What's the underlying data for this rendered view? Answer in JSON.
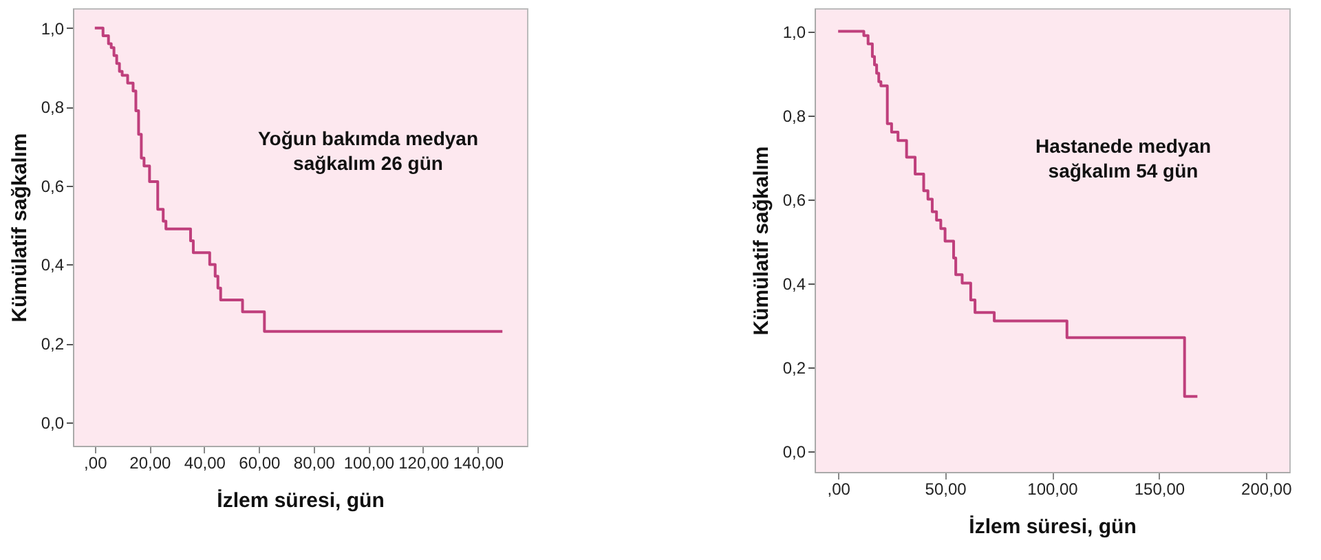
{
  "chart_data": [
    {
      "type": "step",
      "xlabel": "İzlem süresi, gün",
      "ylabel": "Kümülatif sağkalım",
      "annotations": [
        "Yoğun bakımda medyan\nsağkalım 26 gün"
      ],
      "series": [
        {
          "color": "#bf3f7c",
          "x": [
            0,
            3,
            5,
            6,
            7,
            8,
            9,
            10,
            12,
            14,
            15,
            16,
            17,
            18,
            20,
            23,
            25,
            26,
            35,
            36,
            42,
            44,
            45,
            46,
            54,
            62,
            149
          ],
          "values": [
            1.0,
            0.98,
            0.96,
            0.95,
            0.93,
            0.91,
            0.89,
            0.88,
            0.86,
            0.84,
            0.79,
            0.73,
            0.67,
            0.65,
            0.61,
            0.54,
            0.51,
            0.49,
            0.46,
            0.43,
            0.4,
            0.37,
            0.34,
            0.31,
            0.28,
            0.23,
            0.23
          ]
        }
      ],
      "xlim": [
        -8,
        158
      ],
      "ylim": [
        -0.06,
        1.05
      ],
      "xticks": [
        {
          "value": 0,
          "label": ",00"
        },
        {
          "value": 20,
          "label": "20,00"
        },
        {
          "value": 40,
          "label": "40,00"
        },
        {
          "value": 60,
          "label": "60,00"
        },
        {
          "value": 80,
          "label": "80,00"
        },
        {
          "value": 100,
          "label": "100,00"
        },
        {
          "value": 120,
          "label": "120,00"
        },
        {
          "value": 140,
          "label": "140,00"
        }
      ],
      "yticks": [
        {
          "value": 0,
          "label": "0,0"
        },
        {
          "value": 0.2,
          "label": "0,2"
        },
        {
          "value": 0.4,
          "label": "0,4"
        },
        {
          "value": 0.6,
          "label": "0,6"
        },
        {
          "value": 0.8,
          "label": "0,8"
        },
        {
          "value": 1.0,
          "label": "1,0"
        }
      ],
      "grid": false,
      "line_style": "solid",
      "marker": "none"
    },
    {
      "type": "step",
      "xlabel": "İzlem süresi, gün",
      "ylabel": "Kümülatif sağkalım",
      "annotations": [
        "Hastanede medyan\nsağkalım 54 gün"
      ],
      "series": [
        {
          "color": "#bf3f7c",
          "x": [
            0,
            12,
            14,
            16,
            17,
            18,
            19,
            20,
            23,
            25,
            28,
            32,
            36,
            40,
            42,
            44,
            46,
            48,
            50,
            54,
            55,
            58,
            62,
            64,
            73,
            107,
            162,
            168
          ],
          "values": [
            1.0,
            0.99,
            0.97,
            0.94,
            0.92,
            0.9,
            0.88,
            0.87,
            0.78,
            0.76,
            0.74,
            0.7,
            0.66,
            0.62,
            0.6,
            0.57,
            0.55,
            0.53,
            0.5,
            0.46,
            0.42,
            0.4,
            0.36,
            0.33,
            0.31,
            0.27,
            0.13,
            0.13
          ]
        }
      ],
      "xlim": [
        -11,
        211
      ],
      "ylim": [
        -0.05,
        1.055
      ],
      "xticks": [
        {
          "value": 0,
          "label": ",00"
        },
        {
          "value": 50,
          "label": "50,00"
        },
        {
          "value": 100,
          "label": "100,00"
        },
        {
          "value": 150,
          "label": "150,00"
        },
        {
          "value": 200,
          "label": "200,00"
        }
      ],
      "yticks": [
        {
          "value": 0,
          "label": "0,0"
        },
        {
          "value": 0.2,
          "label": "0,2"
        },
        {
          "value": 0.4,
          "label": "0,4"
        },
        {
          "value": 0.6,
          "label": "0,6"
        },
        {
          "value": 0.8,
          "label": "0,8"
        },
        {
          "value": 1.0,
          "label": "1,0"
        }
      ],
      "grid": false,
      "line_style": "solid",
      "marker": "none"
    }
  ]
}
